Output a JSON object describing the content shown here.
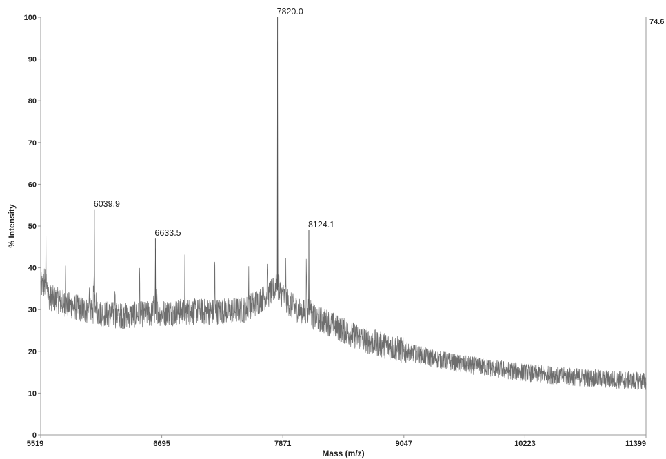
{
  "chart_data": {
    "type": "line",
    "xlabel": "Mass (m/z)",
    "ylabel": "% Intensity",
    "xlim": [
      5519,
      11399
    ],
    "ylim": [
      0,
      100
    ],
    "x_ticks": [
      5519,
      6695,
      7871,
      9047,
      10223,
      11399
    ],
    "x_tick_labels": [
      "5519",
      "6695",
      "7871",
      "9047",
      "10223",
      "11399"
    ],
    "y_ticks": [
      0,
      10,
      20,
      30,
      40,
      50,
      60,
      70,
      80,
      90,
      100
    ],
    "y_tick_labels": [
      "0",
      "10",
      "20",
      "30",
      "40",
      "50",
      "60",
      "70",
      "80",
      "90",
      "100"
    ],
    "scale_max_label": "74.6",
    "peaks": [
      {
        "mass": 6039.9,
        "intensity": 54,
        "label": "6039.9"
      },
      {
        "mass": 6633.5,
        "intensity": 47,
        "label": "6633.5"
      },
      {
        "mass": 7820.0,
        "intensity": 100,
        "label": "7820.0"
      },
      {
        "mass": 8124.1,
        "intensity": 49,
        "label": "8124.1"
      }
    ],
    "minor_peaks": [
      {
        "mass": 5570,
        "intensity": 47
      },
      {
        "mass": 5760,
        "intensity": 44
      },
      {
        "mass": 5990,
        "intensity": 37
      },
      {
        "mass": 6240,
        "intensity": 39
      },
      {
        "mass": 6480,
        "intensity": 40
      },
      {
        "mass": 6920,
        "intensity": 43
      },
      {
        "mass": 7210,
        "intensity": 43
      },
      {
        "mass": 7540,
        "intensity": 40
      },
      {
        "mass": 7720,
        "intensity": 42
      },
      {
        "mass": 7900,
        "intensity": 40
      },
      {
        "mass": 8100,
        "intensity": 44
      }
    ],
    "baseline": {
      "mass": [
        5519,
        5600,
        5800,
        6000,
        6300,
        6600,
        6900,
        7200,
        7500,
        7700,
        7800,
        7850,
        7950,
        8100,
        8300,
        8500,
        8700,
        9000,
        9300,
        9600,
        9900,
        10200,
        10500,
        10800,
        11100,
        11399
      ],
      "intensity": [
        36,
        33,
        31,
        29.5,
        28.5,
        29,
        29.5,
        29.5,
        30,
        33,
        35,
        34,
        31,
        29,
        27,
        24.5,
        22.5,
        20.5,
        18.5,
        17,
        16,
        15,
        14.3,
        13.7,
        13.2,
        12.8
      ]
    }
  }
}
